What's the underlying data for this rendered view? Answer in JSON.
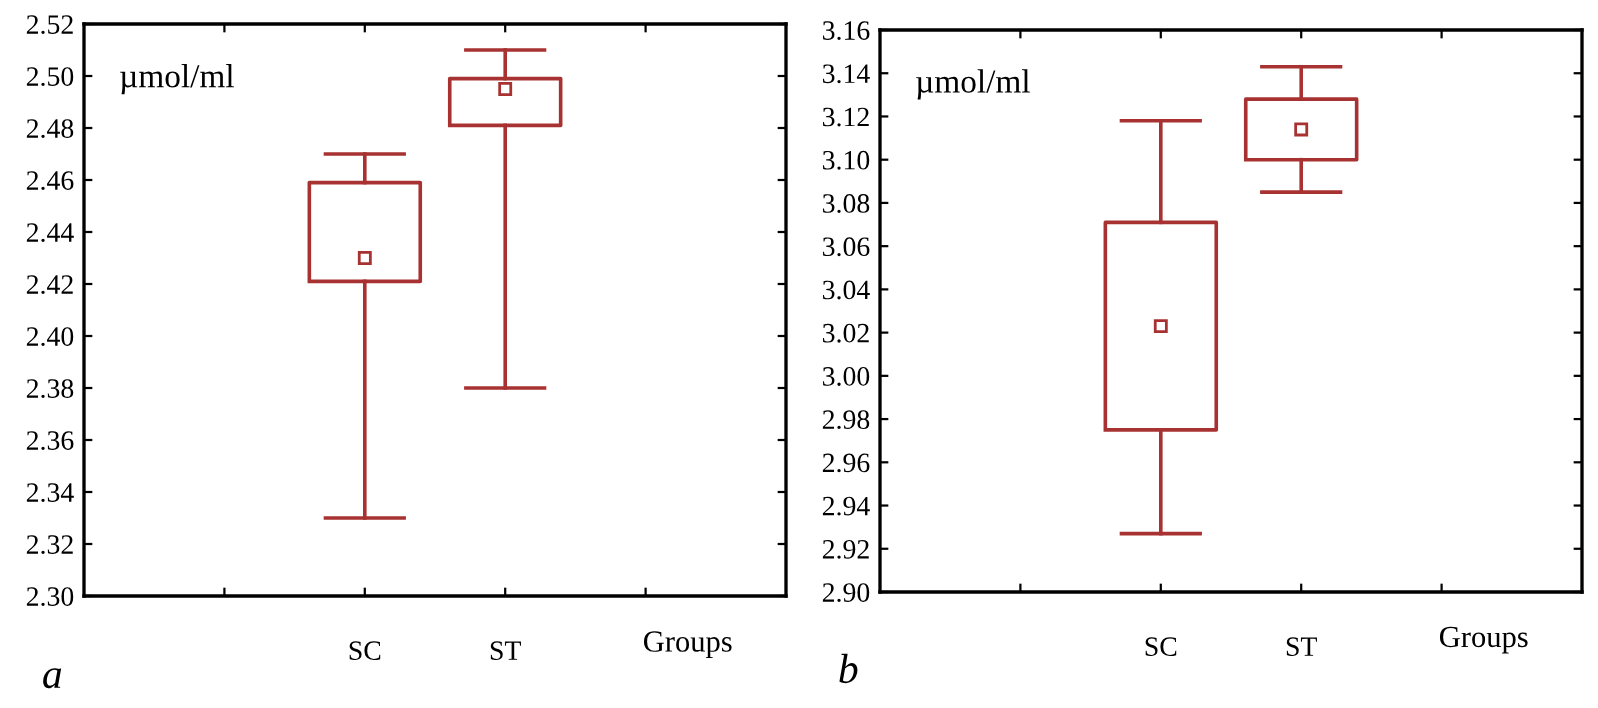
{
  "chart_data": [
    {
      "type": "box",
      "categories": [
        null,
        "SC",
        "ST",
        null
      ],
      "xlabel": "Groups",
      "color": "#a83232",
      "grid": false,
      "boxes": [
        null,
        {
          "low": 2.33,
          "q1": 2.421,
          "median": 2.43,
          "q3": 2.459,
          "high": 2.47
        },
        {
          "low": 2.38,
          "q1": 2.481,
          "median": 2.495,
          "q3": 2.499,
          "high": 2.51
        },
        null
      ],
      "ylim": [
        2.3,
        2.52
      ],
      "yticks": [
        {
          "value": 2.3,
          "label": "2.30"
        },
        {
          "value": 2.32,
          "label": "2.32"
        },
        {
          "value": 2.34,
          "label": "2.34"
        },
        {
          "value": 2.36,
          "label": "2.36"
        },
        {
          "value": 2.38,
          "label": "2.38"
        },
        {
          "value": 2.4,
          "label": "2.40"
        },
        {
          "value": 2.42,
          "label": "2.42"
        },
        {
          "value": 2.44,
          "label": "2.44"
        },
        {
          "value": 2.46,
          "label": "2.46"
        },
        {
          "value": 2.48,
          "label": "2.48"
        },
        {
          "value": 2.5,
          "label": "2.50"
        },
        {
          "value": 2.52,
          "label": "2.52"
        }
      ],
      "annotations": [
        "µmol/ml",
        "a"
      ]
    },
    {
      "type": "box",
      "categories": [
        null,
        "SC",
        "ST",
        null
      ],
      "xlabel": "Groups",
      "color": "#a83232",
      "grid": false,
      "boxes": [
        null,
        {
          "low": 2.927,
          "q1": 2.975,
          "median": 3.023,
          "q3": 3.071,
          "high": 3.118
        },
        {
          "low": 3.085,
          "q1": 3.1,
          "median": 3.114,
          "q3": 3.128,
          "high": 3.143
        },
        null
      ],
      "ylim": [
        2.9,
        3.16
      ],
      "yticks": [
        {
          "value": 2.9,
          "label": "2.90"
        },
        {
          "value": 2.92,
          "label": "2.92"
        },
        {
          "value": 2.94,
          "label": "2.94"
        },
        {
          "value": 2.96,
          "label": "2.96"
        },
        {
          "value": 2.98,
          "label": "2.98"
        },
        {
          "value": 3.0,
          "label": "3.00"
        },
        {
          "value": 3.02,
          "label": "3.02"
        },
        {
          "value": 3.04,
          "label": "3.04"
        },
        {
          "value": 3.06,
          "label": "3.06"
        },
        {
          "value": 3.08,
          "label": "3.08"
        },
        {
          "value": 3.1,
          "label": "3.10"
        },
        {
          "value": 3.12,
          "label": "3.12"
        },
        {
          "value": 3.14,
          "label": "3.14"
        },
        {
          "value": 3.16,
          "label": "3.16"
        }
      ],
      "annotations": [
        "µmol/ml",
        "b"
      ]
    }
  ]
}
